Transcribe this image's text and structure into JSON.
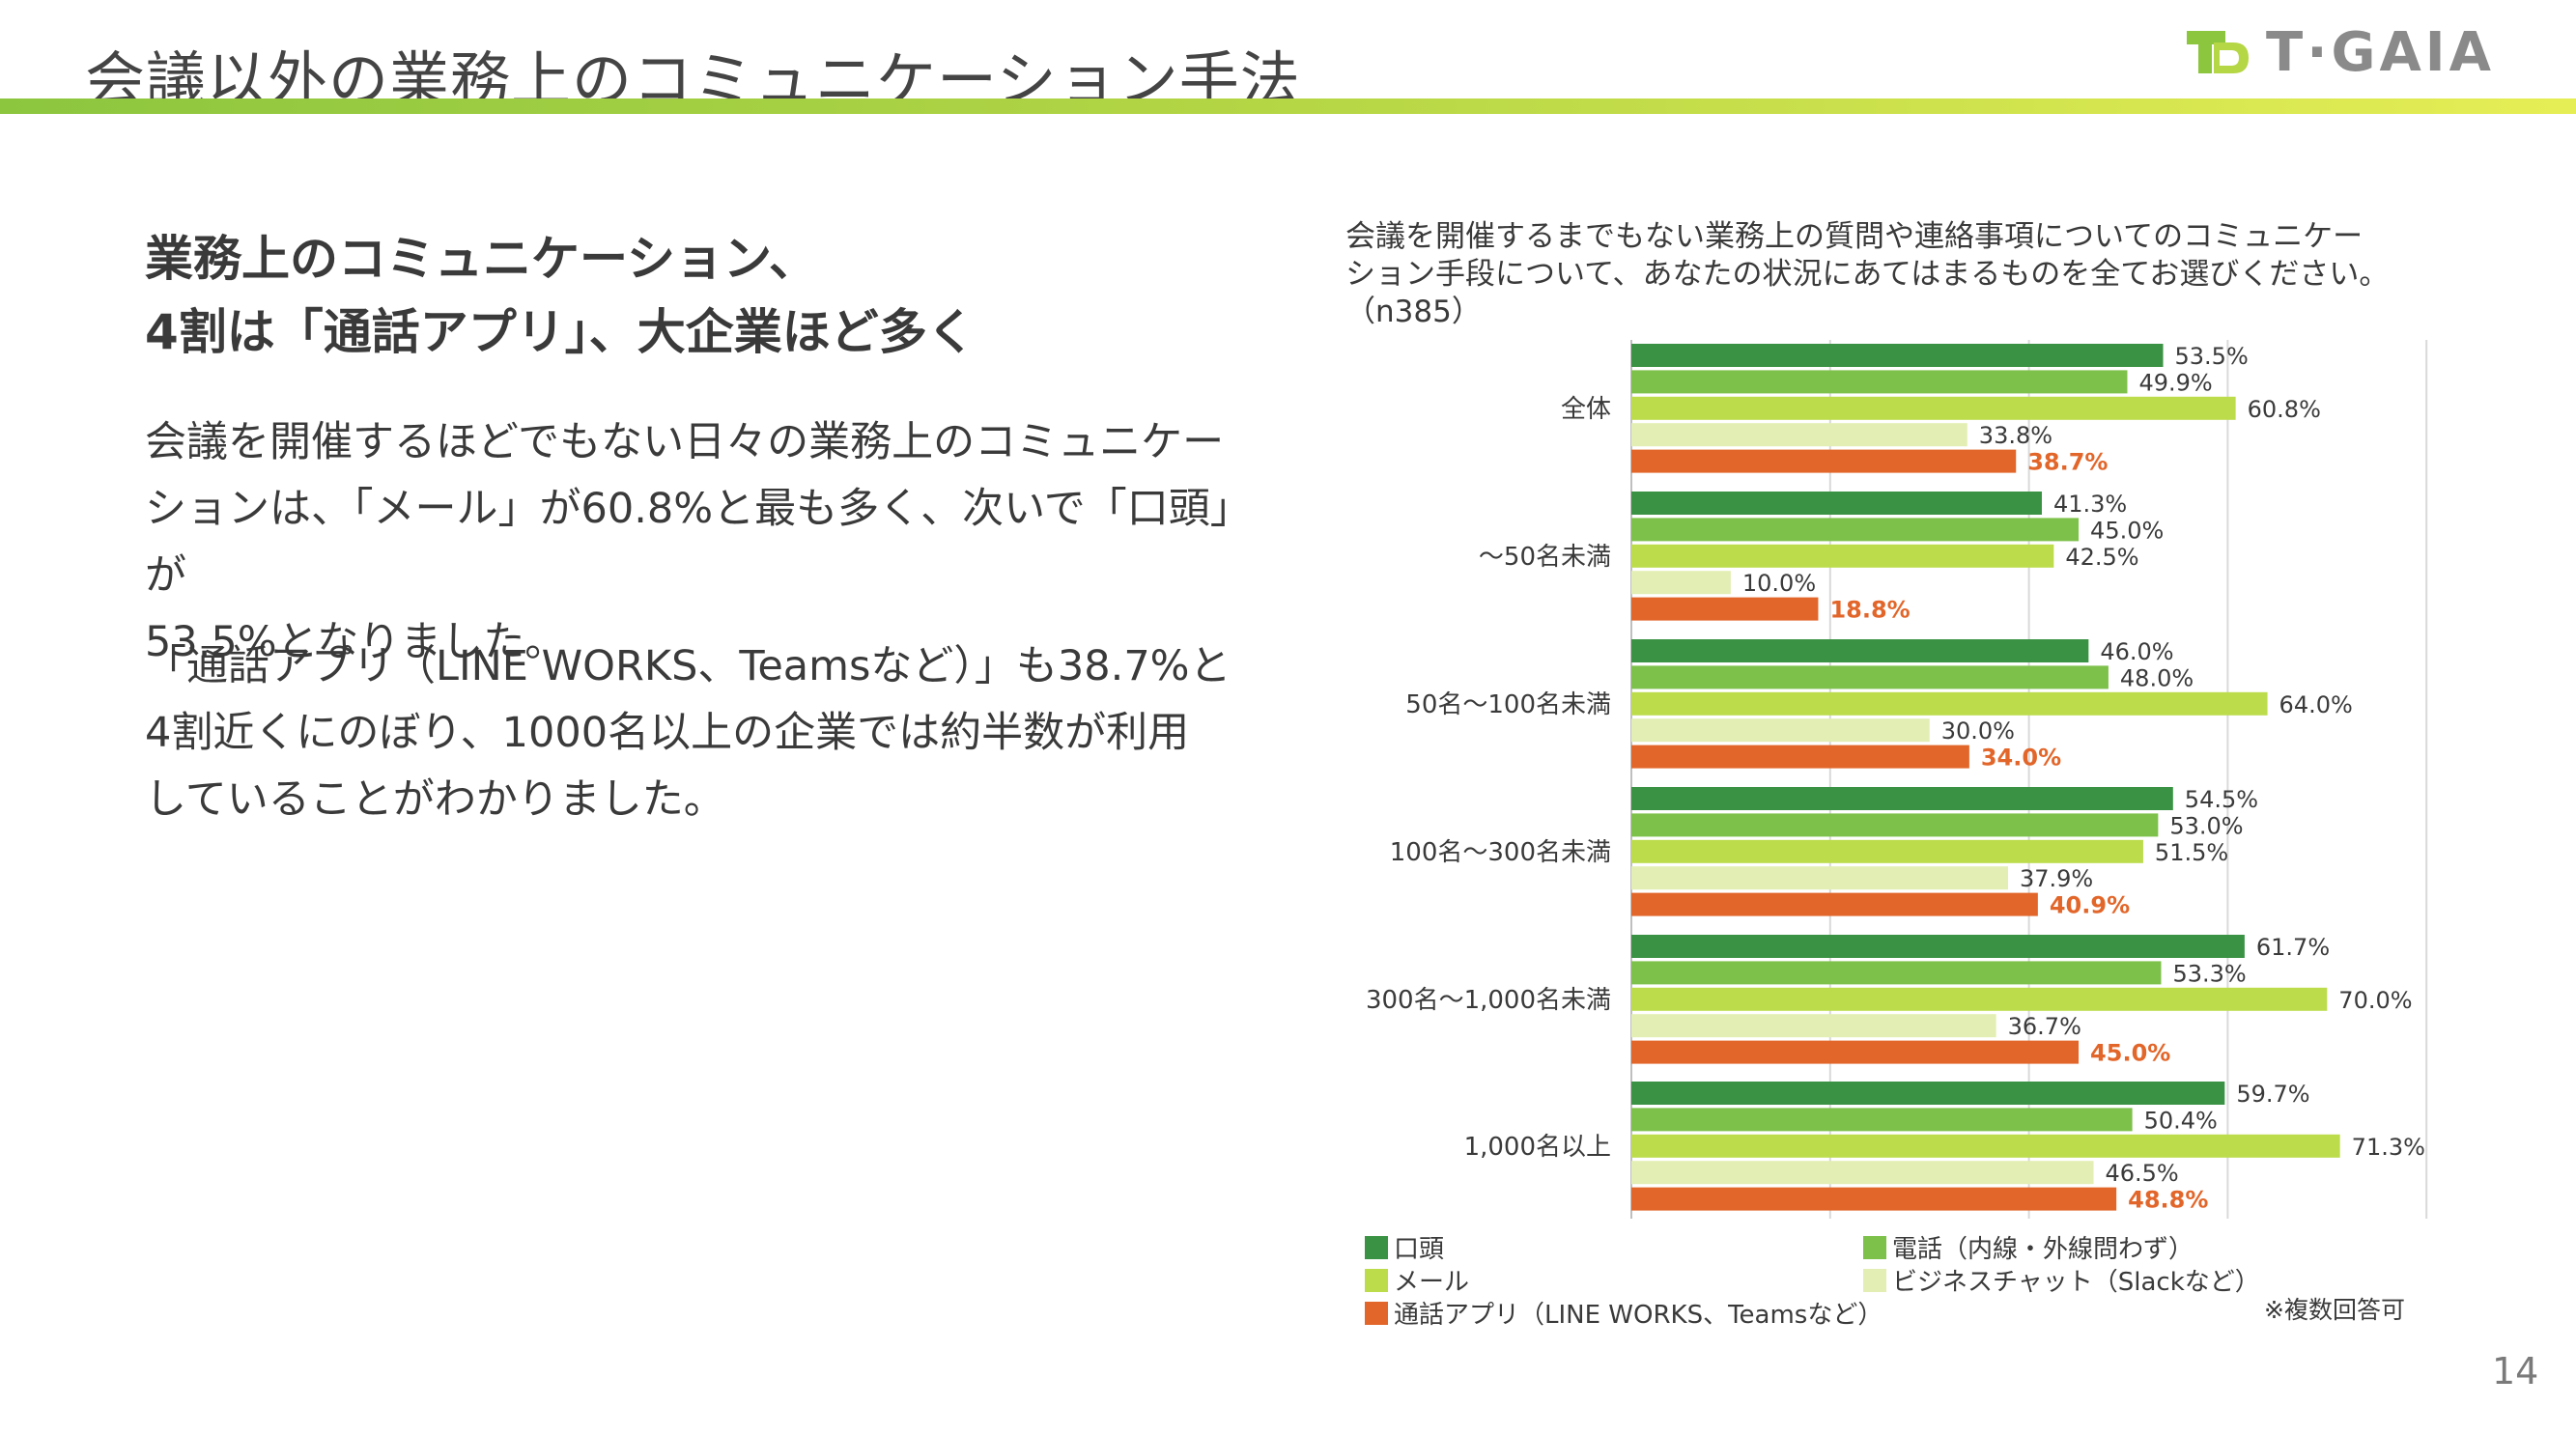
{
  "header": {
    "title": "会議以外の業務上のコミュニケーション手法",
    "logo_text": "T·GAIA"
  },
  "left": {
    "heading_line1": "業務上のコミュニケーション、",
    "heading_line2": "4割は「通話アプリ」、大企業ほど多く",
    "para1_line1": "会議を開催するほどでもない日々の業務上のコミュニケー",
    "para1_line2": "ションは、「メール」が60.8%と最も多く、次いで「口頭」が",
    "para1_line3": "53.5%となりました。",
    "para2_line1": "「通話アプリ（LINE WORKS、Teamsなど）」も38.7%と",
    "para2_line2": "4割近くにのぼり、1000名以上の企業では約半数が利用",
    "para2_line3": "していることがわかりました。"
  },
  "question": {
    "line1": "会議を開催するまでもない業務上の質問や連絡事項についてのコミュニケー",
    "line2": "ション手段について、あなたの状況にあてはまるものを全てお選びください。",
    "line3": "（n385）"
  },
  "note": "※複数回答可",
  "page_number": "14",
  "chart_data": {
    "type": "bar",
    "orientation": "horizontal",
    "categories": [
      "全体",
      "～50名未満",
      "50名～100名未満",
      "100名～300名未満",
      "300名～1,000名未満",
      "1,000名以上"
    ],
    "xlim": [
      0,
      80
    ],
    "grid": true,
    "legend_position": "bottom",
    "series": [
      {
        "name": "口頭",
        "color": "#3a9244",
        "values": [
          53.5,
          41.3,
          46.0,
          54.5,
          61.7,
          59.7
        ]
      },
      {
        "name": "電話（内線・外線問わず）",
        "color": "#7dc04a",
        "values": [
          49.9,
          45.0,
          48.0,
          53.0,
          53.3,
          50.4
        ]
      },
      {
        "name": "メール",
        "color": "#bcdc4c",
        "values": [
          60.8,
          42.5,
          64.0,
          51.5,
          70.0,
          71.3
        ]
      },
      {
        "name": "ビジネスチャット（Slackなど）",
        "color": "#e2eeb4",
        "values": [
          33.8,
          10.0,
          30.0,
          37.9,
          36.7,
          46.5
        ]
      },
      {
        "name": "通話アプリ（LINE WORKS、Teamsなど）",
        "color": "#e2662a",
        "values": [
          38.7,
          18.8,
          34.0,
          40.9,
          45.0,
          48.8
        ]
      }
    ],
    "value_labels": [
      [
        "53.5%",
        "49.9%",
        "60.8%",
        "33.8%",
        "38.7%"
      ],
      [
        "41.3%",
        "45.0%",
        "42.5%",
        "10.0%",
        "18.8%"
      ],
      [
        "46.0%",
        "48.0%",
        "64.0%",
        "30.0%",
        "34.0%"
      ],
      [
        "54.5%",
        "53.0%",
        "51.5%",
        "37.9%",
        "40.9%"
      ],
      [
        "61.7%",
        "53.3%",
        "70.0%",
        "36.7%",
        "45.0%"
      ],
      [
        "59.7%",
        "50.4%",
        "71.3%",
        "46.5%",
        "48.8%"
      ]
    ]
  }
}
